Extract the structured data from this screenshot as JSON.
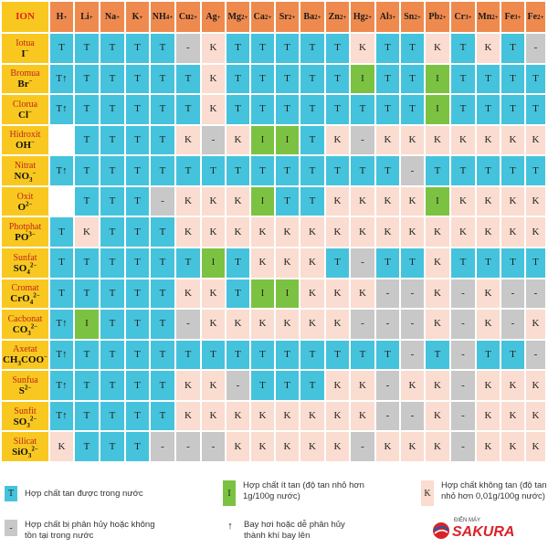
{
  "corner_label": "ION",
  "cations": [
    {
      "base": "H",
      "charge": "+"
    },
    {
      "base": "Li",
      "charge": "+"
    },
    {
      "base": "Na",
      "charge": "+"
    },
    {
      "base": "K",
      "charge": "+"
    },
    {
      "base": "NH",
      "sub": "4",
      "charge": "+"
    },
    {
      "base": "Cu",
      "charge": "2+"
    },
    {
      "base": "Ag",
      "charge": "+"
    },
    {
      "base": "Mg",
      "charge": "2+"
    },
    {
      "base": "Ca",
      "charge": "2+"
    },
    {
      "base": "Sr",
      "charge": "2+"
    },
    {
      "base": "Ba",
      "charge": "2+"
    },
    {
      "base": "Zn",
      "charge": "2+"
    },
    {
      "base": "Hg",
      "charge": "2+"
    },
    {
      "base": "Al",
      "charge": "3+"
    },
    {
      "base": "Sn",
      "charge": "2+"
    },
    {
      "base": "Pb",
      "charge": "2+"
    },
    {
      "base": "Cr",
      "charge": "3+"
    },
    {
      "base": "Mn",
      "charge": "2+"
    },
    {
      "base": "Fe",
      "charge": "3+"
    },
    {
      "base": "Fe",
      "charge": "2+"
    }
  ],
  "rows": [
    {
      "name": "Iotua",
      "formula": "I",
      "fsub": "",
      "charge": "−",
      "cells": [
        "T",
        "T",
        "T",
        "T",
        "T",
        "-",
        "K",
        "T",
        "T",
        "T",
        "T",
        "T",
        "K",
        "T",
        "T",
        "K",
        "T",
        "K",
        "T",
        "-"
      ]
    },
    {
      "name": "Bromua",
      "formula": "Br",
      "fsub": "",
      "charge": "−",
      "cells": [
        "T↑",
        "T",
        "T",
        "T",
        "T",
        "T",
        "K",
        "T",
        "T",
        "T",
        "T",
        "T",
        "I",
        "T",
        "T",
        "I",
        "T",
        "T",
        "T",
        "T"
      ]
    },
    {
      "name": "Clorua",
      "formula": "Cl",
      "fsub": "",
      "charge": "−",
      "cells": [
        "T↑",
        "T",
        "T",
        "T",
        "T",
        "T",
        "K",
        "T",
        "T",
        "T",
        "T",
        "T",
        "T",
        "T",
        "T",
        "I",
        "T",
        "T",
        "T",
        "T"
      ]
    },
    {
      "name": "Hidroxit",
      "formula": "OH",
      "fsub": "",
      "charge": "−",
      "cells": [
        "",
        "T",
        "T",
        "T",
        "T",
        "K",
        "-",
        "K",
        "I",
        "I",
        "T",
        "K",
        "-",
        "K",
        "K",
        "K",
        "K",
        "K",
        "K",
        "K"
      ]
    },
    {
      "name": "Nitrat",
      "formula": "NO",
      "fsub": "3",
      "charge": "−",
      "cells": [
        "T↑",
        "T",
        "T",
        "T",
        "T",
        "T",
        "T",
        "T",
        "T",
        "T",
        "T",
        "T",
        "T",
        "T",
        "-",
        "T",
        "T",
        "T",
        "T",
        "T"
      ]
    },
    {
      "name": "Oxit",
      "formula": "O",
      "fsub": "",
      "charge": "2−",
      "cells": [
        "",
        "T",
        "T",
        "T",
        "-",
        "K",
        "K",
        "K",
        "I",
        "T",
        "T",
        "K",
        "K",
        "K",
        "K",
        "I",
        "K",
        "K",
        "K",
        "K"
      ]
    },
    {
      "name": "Photphat",
      "formula": "PO",
      "fsub": "",
      "charge": "3−",
      "cells": [
        "T",
        "K",
        "T",
        "T",
        "T",
        "K",
        "K",
        "K",
        "K",
        "K",
        "K",
        "K",
        "K",
        "K",
        "K",
        "K",
        "K",
        "K",
        "K",
        "K"
      ]
    },
    {
      "name": "Sunfat",
      "formula": "SO",
      "fsub": "4",
      "charge": "2−",
      "cells": [
        "T",
        "T",
        "T",
        "T",
        "T",
        "T",
        "I",
        "T",
        "K",
        "K",
        "K",
        "T",
        "-",
        "T",
        "T",
        "K",
        "T",
        "T",
        "T",
        "T"
      ]
    },
    {
      "name": "Cromat",
      "formula": "CrO",
      "fsub": "4",
      "charge": "2−",
      "cells": [
        "T",
        "T",
        "T",
        "T",
        "T",
        "K",
        "K",
        "T",
        "I",
        "I",
        "K",
        "K",
        "K",
        "-",
        "-",
        "K",
        "-",
        "K",
        "-",
        "-"
      ]
    },
    {
      "name": "Cacbonat",
      "formula": "CO",
      "fsub": "3",
      "charge": "2−",
      "cells": [
        "T↑",
        "I",
        "T",
        "T",
        "T",
        "-",
        "K",
        "K",
        "K",
        "K",
        "K",
        "K",
        "-",
        "-",
        "-",
        "K",
        "-",
        "K",
        "-",
        "K"
      ]
    },
    {
      "name": "Axetat",
      "formula": "CH",
      "fsub": "3",
      "suffix": "COO",
      "charge": "−",
      "cells": [
        "T↑",
        "T",
        "T",
        "T",
        "T",
        "T",
        "T",
        "T",
        "T",
        "T",
        "T",
        "T",
        "T",
        "T",
        "-",
        "T",
        "-",
        "T",
        "T",
        "-"
      ]
    },
    {
      "name": "Sunfua",
      "formula": "S",
      "fsub": "",
      "charge": "2−",
      "cells": [
        "T↑",
        "T",
        "T",
        "T",
        "T",
        "K",
        "K",
        "-",
        "T",
        "T",
        "T",
        "K",
        "K",
        "-",
        "K",
        "K",
        "-",
        "K",
        "K",
        "K"
      ]
    },
    {
      "name": "Sunfit",
      "formula": "SO",
      "fsub": "3",
      "charge": "2−",
      "cells": [
        "T↑",
        "T",
        "T",
        "T",
        "T",
        "K",
        "K",
        "K",
        "K",
        "K",
        "K",
        "K",
        "K",
        "-",
        "-",
        "K",
        "-",
        "K",
        "K",
        "K"
      ]
    },
    {
      "name": "Silicat",
      "formula": "SiO",
      "fsub": "3",
      "charge": "2−",
      "cells": [
        "K",
        "T",
        "T",
        "T",
        "-",
        "-",
        "-",
        "K",
        "K",
        "K",
        "K",
        "K",
        "-",
        "K",
        "K",
        "K",
        "-",
        "K",
        "K",
        "K"
      ]
    }
  ],
  "legend": {
    "tan": {
      "symbol": "T",
      "text": "Hợp chất tan được trong nước"
    },
    "it_tan": {
      "symbol": "I",
      "text": "Hợp chất ít tan (độ tan nhỏ hơn 1g/100g nước)"
    },
    "khong_tan": {
      "symbol": "K",
      "text": "Hợp chất không tan (độ tan nhỏ hơn 0,01g/100g nước)"
    },
    "phan_huy": {
      "symbol": "-",
      "text": "Hợp chất bị phân hủy hoặc không tồn tại trong nước"
    },
    "bay_hoi": {
      "symbol": "↑",
      "text": "Bay hơi hoặc dễ phân hủy thành khí bay lên"
    }
  },
  "logo": {
    "top": "ĐIỆN MÁY",
    "main": "SAKURA"
  },
  "colors": {
    "tan": "#45c3dc",
    "it_tan": "#7cc242",
    "khong_tan": "#fadcd0",
    "phan_huy": "#c8c8c8",
    "header": "#ef8a4f",
    "ion": "#f9c820",
    "logo_red": "#d8232a"
  }
}
